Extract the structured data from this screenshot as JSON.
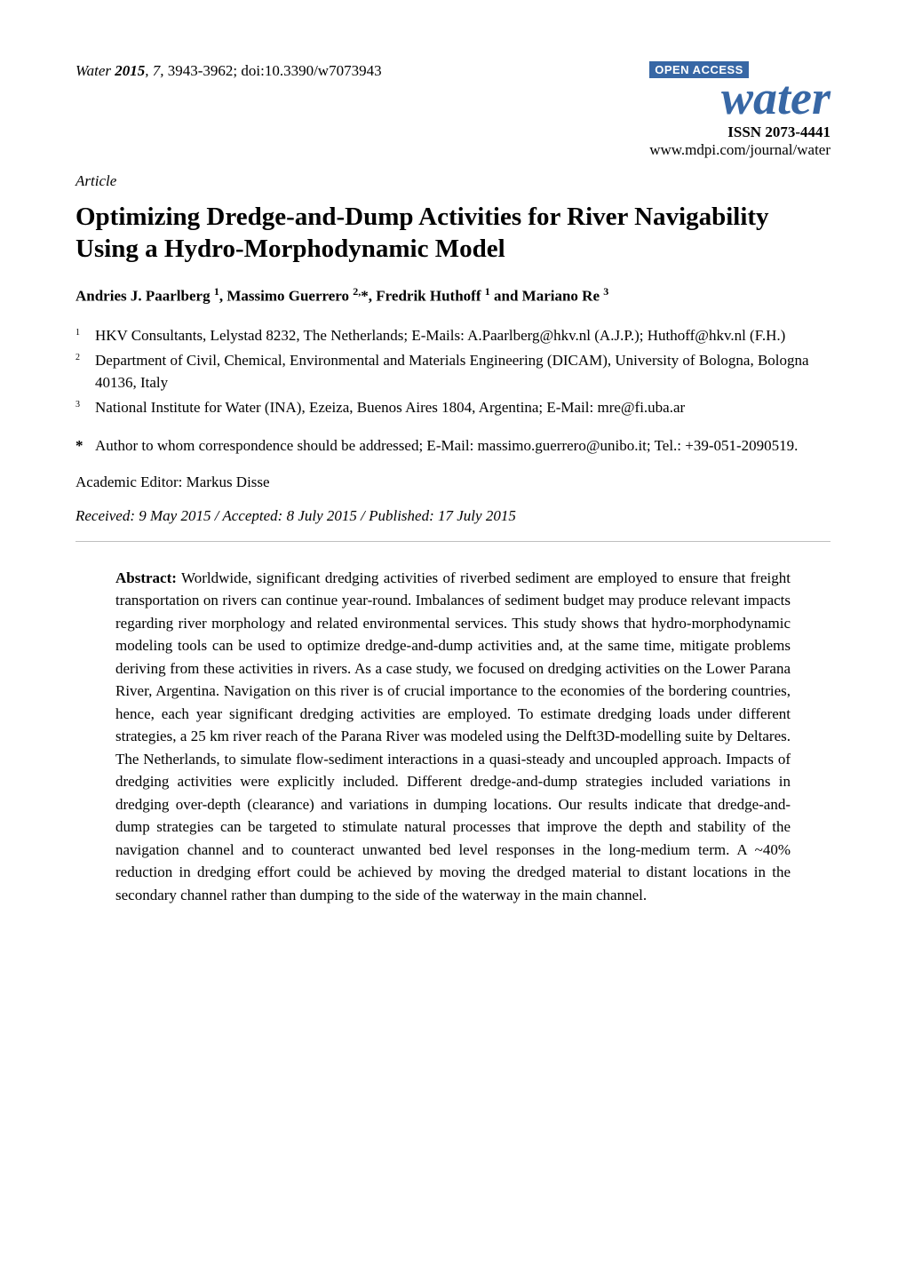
{
  "header": {
    "journal_ref_name": "Water",
    "journal_ref_year": "2015",
    "journal_ref_volume": "7",
    "journal_ref_pages": "3943-3962; doi:10.3390/w7073943",
    "open_access_label": "OPEN ACCESS",
    "journal_logo_text": "water",
    "issn": "ISSN 2073-4441",
    "journal_url": "www.mdpi.com/journal/water"
  },
  "article_type": "Article",
  "title": "Optimizing Dredge-and-Dump Activities for River Navigability Using a Hydro-Morphodynamic Model",
  "authors_html": "Andries J. Paarlberg <sup>1</sup>, Massimo Guerrero <sup>2,</sup>*, Fredrik Huthoff <sup>1</sup> and Mariano Re <sup>3</sup>",
  "affiliations": [
    {
      "num": "1",
      "text": "HKV Consultants, Lelystad 8232, The Netherlands; E-Mails: A.Paarlberg@hkv.nl (A.J.P.); Huthoff@hkv.nl (F.H.)"
    },
    {
      "num": "2",
      "text": "Department of Civil, Chemical, Environmental and Materials Engineering (DICAM), University of Bologna, Bologna 40136, Italy"
    },
    {
      "num": "3",
      "text": "National Institute for Water (INA), Ezeiza, Buenos Aires 1804, Argentina; E-Mail: mre@fi.uba.ar"
    }
  ],
  "correspondence": {
    "marker": "*",
    "text": "Author to whom correspondence should be addressed; E-Mail: massimo.guerrero@unibo.it; Tel.: +39-051-2090519."
  },
  "academic_editor": "Academic Editor: Markus Disse",
  "dates": "Received: 9 May 2015 / Accepted: 8 July 2015 / Published: 17 July 2015",
  "abstract": {
    "label": "Abstract:",
    "text": "Worldwide, significant dredging activities of riverbed sediment are employed to ensure that freight transportation on rivers can continue year-round. Imbalances of sediment budget may produce relevant impacts regarding river morphology and related environmental services. This study shows that hydro-morphodynamic modeling tools can be used to optimize dredge-and-dump activities and, at the same time, mitigate problems deriving from these activities in rivers. As a case study, we focused on dredging activities on the Lower Parana River, Argentina. Navigation on this river is of crucial importance to the economies of the bordering countries, hence, each year significant dredging activities are employed. To estimate dredging loads under different strategies, a 25 km river reach of the Parana River was modeled using the Delft3D-modelling suite by Deltares. The Netherlands, to simulate flow-sediment interactions in a quasi-steady and uncoupled approach. Impacts of dredging activities were explicitly included. Different dredge-and-dump strategies included variations in dredging over-depth (clearance) and variations in dumping locations. Our results indicate that dredge-and-dump strategies can be targeted to stimulate natural processes that improve the depth and stability of the navigation channel and to counteract unwanted bed level responses in the long-medium term. A ~40% reduction in dredging effort could be achieved by moving the dredged material to distant locations in the secondary channel rather than dumping to the side of the waterway in the main channel."
  },
  "colors": {
    "brand_blue": "#3767a5",
    "text": "#000000",
    "background": "#ffffff",
    "divider": "#bfbfbf"
  },
  "typography": {
    "body_font": "Times New Roman",
    "title_fontsize_pt": 22,
    "body_fontsize_pt": 13,
    "logo_fontsize_pt": 40
  }
}
